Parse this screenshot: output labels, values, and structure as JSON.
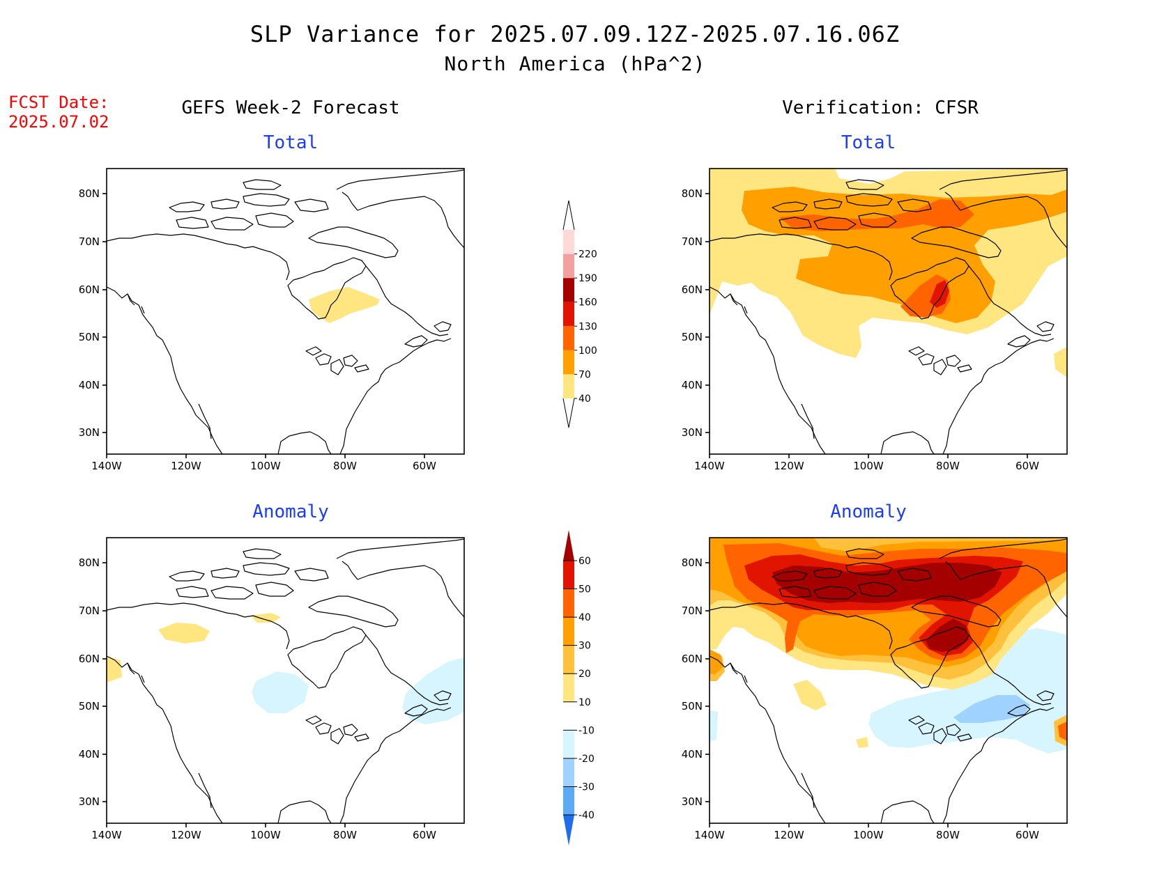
{
  "header": {
    "title": "SLP Variance for 2025.07.09.12Z-2025.07.16.06Z",
    "subtitle": "North America (hPa^2)"
  },
  "fcst_date": {
    "label": "FCST Date:",
    "value": "2025.07.02"
  },
  "columns": {
    "left": "GEFS Week-2 Forecast",
    "right": "Verification: CFSR"
  },
  "panels": {
    "total_label": "Total",
    "anomaly_label": "Anomaly"
  },
  "axes": {
    "lat_labels": [
      "80N",
      "70N",
      "60N",
      "50N",
      "40N",
      "30N"
    ],
    "lon_labels": [
      "140W",
      "120W",
      "100W",
      "80W",
      "60W"
    ]
  },
  "colorbars": {
    "total": {
      "levels": [
        "40",
        "70",
        "100",
        "130",
        "160",
        "190",
        "220"
      ],
      "colors": [
        "#ffe680",
        "#ffa000",
        "#ff6400",
        "#e11400",
        "#a50000",
        "#f3a0a0",
        "#ffd8d8"
      ]
    },
    "anomaly": {
      "levels": [
        "60",
        "50",
        "40",
        "30",
        "20",
        "10",
        "-10",
        "-20",
        "-30",
        "-40"
      ],
      "colors_top_down": [
        "#a50000",
        "#e11400",
        "#ff6400",
        "#ffa000",
        "#ffc03c",
        "#ffe680",
        "#ffffff",
        "#d7f5ff",
        "#a0d2ff",
        "#5aaaf5",
        "#1e6eeb"
      ]
    }
  },
  "colors": {
    "title_text": "#000000",
    "fcst_text": "#ff0000",
    "panel_heading_text": "#1a3cff"
  }
}
